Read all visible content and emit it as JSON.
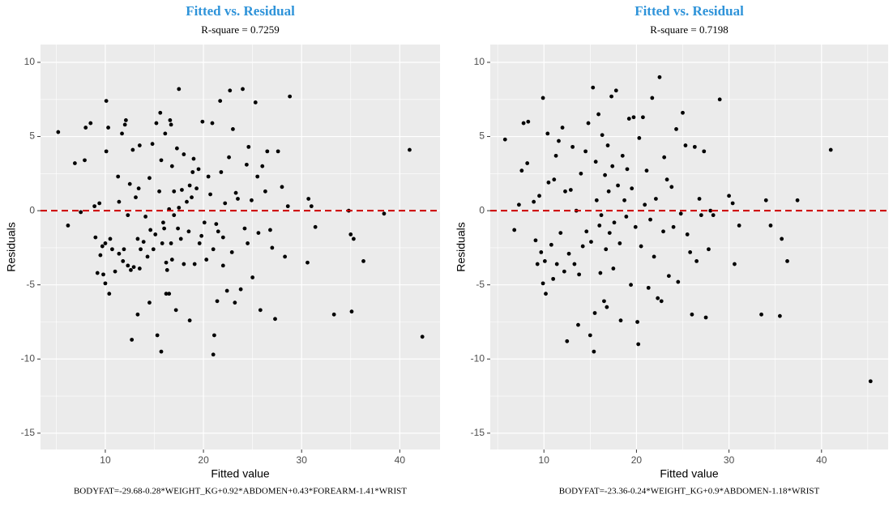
{
  "chart_data": [
    {
      "type": "scatter",
      "title": "Fitted vs. Residual",
      "title_color": "#2e93d9",
      "subtitle": "R-square = 0.7259",
      "x_label": "Fitted value",
      "y_label": "Residuals",
      "caption": "BODYFAT=-29.68-0.28*WEIGHT_KG+0.92*ABDOMEN+0.43*FOREARM-1.41*WRIST",
      "color": "#000000",
      "background": "#ebebeb",
      "hline": 0,
      "hline_color": "#cc0000",
      "grid": true,
      "xlim": [
        3.4,
        44.1
      ],
      "ylim": [
        -16.1,
        11.2
      ],
      "xticks": [
        10,
        20,
        30,
        40
      ],
      "yticks": [
        -15,
        -10,
        -5,
        0,
        5,
        10
      ],
      "x": [
        5.2,
        6.2,
        6.9,
        7.5,
        8.0,
        8.5,
        7.9,
        8.9,
        9.0,
        9.2,
        9.4,
        9.5,
        9.7,
        9.8,
        10,
        10.1,
        10.1,
        10.3,
        10,
        10.4,
        10.5,
        10.7,
        11,
        11.3,
        11.4,
        11.4,
        11.7,
        11.8,
        11.9,
        12,
        12.1,
        12.3,
        12.3,
        12.5,
        12.6,
        12.7,
        12.8,
        12.9,
        13.1,
        13.3,
        13.3,
        13.4,
        13.5,
        13.5,
        13.6,
        13.9,
        14.1,
        14.3,
        14.5,
        14.5,
        14.6,
        14.8,
        14.9,
        15.1,
        15.2,
        15.3,
        15.5,
        15.7,
        15.6,
        15.7,
        15.8,
        15.9,
        16,
        16.1,
        16.2,
        16.3,
        16.2,
        16.5,
        16.5,
        16.6,
        16.7,
        16.7,
        16.8,
        16.8,
        17,
        17,
        17.2,
        17.3,
        17.4,
        17.5,
        17.5,
        17.7,
        17.8,
        18,
        18,
        18.3,
        18.5,
        18.6,
        18.6,
        18.8,
        18.9,
        19,
        19.1,
        19.3,
        19.5,
        19.6,
        19.8,
        19.9,
        20.1,
        20.3,
        20.5,
        20.7,
        20.9,
        21,
        21,
        21.1,
        21.3,
        21.4,
        21.5,
        21.7,
        21.8,
        22,
        22,
        22.2,
        22.4,
        22.6,
        22.7,
        22.9,
        23,
        23.2,
        23.3,
        23.5,
        23.8,
        24,
        24.2,
        24.4,
        24.5,
        24.6,
        24.9,
        25,
        25.3,
        25.5,
        25.6,
        25.8,
        26,
        26.3,
        26.5,
        26.8,
        27,
        27.3,
        27.6,
        28,
        28.3,
        28.6,
        28.8,
        30.6,
        30.7,
        31,
        31.4,
        33.3,
        34.8,
        35,
        35.1,
        35.3,
        36.3,
        38.4,
        41,
        42.3
      ],
      "values": [
        5.3,
        -1,
        3.2,
        -0.1,
        5.6,
        5.9,
        3.4,
        0.3,
        -1.8,
        -4.2,
        0.5,
        -3,
        -2.4,
        -4.3,
        -2.2,
        7.4,
        4,
        5.6,
        -4.9,
        -5.6,
        -1.9,
        -2.6,
        -4.1,
        2.3,
        -2.9,
        0.6,
        5.2,
        -3.4,
        -2.6,
        5.8,
        6.1,
        -0.3,
        -3.7,
        1.8,
        -4,
        -8.7,
        4.1,
        -3.8,
        0.9,
        -1.9,
        -7,
        1.5,
        4.4,
        -3.9,
        -2.6,
        -2.1,
        -0.4,
        -3.1,
        -6.2,
        2.2,
        -1.3,
        4.5,
        -2.6,
        -1.6,
        5.9,
        -8.4,
        1.3,
        -9.5,
        6.6,
        3.4,
        -2.2,
        -0.8,
        -1.2,
        5.2,
        -5.6,
        -4,
        -3.5,
        -5.6,
        0.1,
        6.1,
        5.8,
        -2.2,
        -3.3,
        3,
        1.3,
        -0.3,
        -6.7,
        4.2,
        -1.2,
        8.2,
        0.2,
        -1.9,
        1.4,
        3.8,
        -3.6,
        0.6,
        -1.4,
        -7.4,
        1.7,
        0.9,
        2.6,
        3.5,
        -3.6,
        1.5,
        2.8,
        -2.2,
        -1.7,
        6,
        -0.8,
        -3.3,
        2.3,
        1.1,
        5.9,
        -2.6,
        -9.7,
        -8.4,
        -0.9,
        -6.1,
        -1.4,
        7.4,
        2.6,
        -1.8,
        -3.7,
        0.5,
        -5.4,
        3.6,
        8.1,
        -2.8,
        5.5,
        -6.2,
        1.2,
        0.8,
        -5.3,
        8.2,
        -1.2,
        3.1,
        -2.2,
        4.3,
        0.7,
        -4.5,
        7.3,
        2.3,
        -1.5,
        -6.7,
        3,
        1.3,
        4,
        -1.3,
        -2.5,
        -7.3,
        4,
        1.6,
        -3.1,
        0.3,
        7.7,
        -3.5,
        0.8,
        0.3,
        -1.1,
        -7,
        0,
        -1.6,
        -6.8,
        -1.9,
        -3.4,
        -0.2,
        4.1,
        -8.5
      ]
    },
    {
      "type": "scatter",
      "title": "Fitted vs. Residual",
      "title_color": "#2e93d9",
      "subtitle": "R-square = 0.7198",
      "x_label": "Fitted value",
      "y_label": "Residuals",
      "caption": "BODYFAT=-23.36-0.24*WEIGHT_KG+0.9*ABDOMEN-1.18*WRIST",
      "color": "#000000",
      "background": "#ebebeb",
      "hline": 0,
      "hline_color": "#cc0000",
      "grid": true,
      "xlim": [
        4.2,
        47.2
      ],
      "ylim": [
        -16.1,
        11.2
      ],
      "xticks": [
        10,
        20,
        30,
        40
      ],
      "yticks": [
        -15,
        -10,
        -5,
        0,
        5,
        10
      ],
      "x": [
        5.8,
        6.8,
        7.3,
        7.6,
        7.8,
        8.3,
        8.2,
        8.9,
        9.1,
        9.3,
        9.5,
        9.7,
        9.9,
        9.9,
        10.1,
        10.2,
        10.4,
        10.5,
        10.8,
        11,
        11.1,
        11.3,
        11.4,
        11.6,
        11.8,
        12,
        12.2,
        12.3,
        12.5,
        12.7,
        12.9,
        13.1,
        13.3,
        13.5,
        13.7,
        13.8,
        14,
        14.2,
        14.5,
        14.6,
        14.8,
        15,
        15.1,
        15.3,
        15.4,
        15.5,
        15.6,
        15.7,
        15.9,
        16,
        16.1,
        16.2,
        16.3,
        16.5,
        16.6,
        16.7,
        16.8,
        16.9,
        17,
        17.1,
        17.3,
        17.4,
        17.5,
        17.6,
        17.8,
        18,
        18.2,
        18.3,
        18.5,
        18.7,
        18.9,
        19,
        19.2,
        19.4,
        19.5,
        19.7,
        19.9,
        20.1,
        20.2,
        20.3,
        20.5,
        20.7,
        20.9,
        21.1,
        21.3,
        21.5,
        21.7,
        21.9,
        22.1,
        22.3,
        22.5,
        22.7,
        22.9,
        23,
        23.3,
        23.5,
        23.8,
        24,
        24.3,
        24.5,
        24.8,
        25,
        25.3,
        25.5,
        25.8,
        26,
        26.3,
        26.5,
        26.8,
        27,
        27.3,
        27.5,
        27.8,
        28,
        28.3,
        29,
        30,
        30.4,
        30.6,
        31.1,
        33.5,
        34,
        34.5,
        35.5,
        35.7,
        36.3,
        37.4,
        41,
        45.3
      ],
      "values": [
        4.8,
        -1.3,
        0.4,
        2.7,
        5.9,
        6,
        3.2,
        0.6,
        -2,
        -3.6,
        1,
        -2.8,
        7.6,
        -4.9,
        -3.4,
        -5.6,
        5.2,
        1.9,
        -2.3,
        -4.6,
        2.1,
        3.7,
        -3.6,
        4.7,
        -1.5,
        5.6,
        -4.1,
        1.3,
        -8.8,
        -2.9,
        1.4,
        4.3,
        -3.6,
        0,
        -7.7,
        -4.3,
        2.5,
        -2.4,
        4,
        -1.4,
        5.9,
        -8.4,
        -2.1,
        8.3,
        -9.5,
        -6.9,
        3.3,
        0.7,
        6.5,
        -1,
        -4.2,
        -0.3,
        5.1,
        -6.1,
        2.4,
        -2.6,
        -6.5,
        4.4,
        1.3,
        -1.5,
        7.7,
        3,
        -3.9,
        -0.8,
        8.1,
        1.7,
        -2.2,
        -7.4,
        3.7,
        0.7,
        -0.4,
        2.8,
        6.2,
        -5,
        1.5,
        6.3,
        -1.1,
        -7.5,
        -9,
        4.9,
        -2.4,
        6.3,
        0.4,
        2.7,
        -5.2,
        -0.6,
        7.6,
        -3.1,
        0.8,
        -5.9,
        9,
        -6.1,
        -1.4,
        3.6,
        2.1,
        -4.4,
        1.6,
        -1.1,
        5.5,
        -4.8,
        -0.2,
        6.6,
        4.4,
        -1.6,
        -2.8,
        -7,
        4.3,
        -3.4,
        0.8,
        -0.3,
        4,
        -7.2,
        -2.6,
        0,
        -0.3,
        7.5,
        1,
        0.5,
        -3.6,
        -1,
        -7,
        0.7,
        -1,
        -7.1,
        -1.9,
        -3.4,
        0.7,
        4.1,
        -11.5
      ]
    }
  ]
}
